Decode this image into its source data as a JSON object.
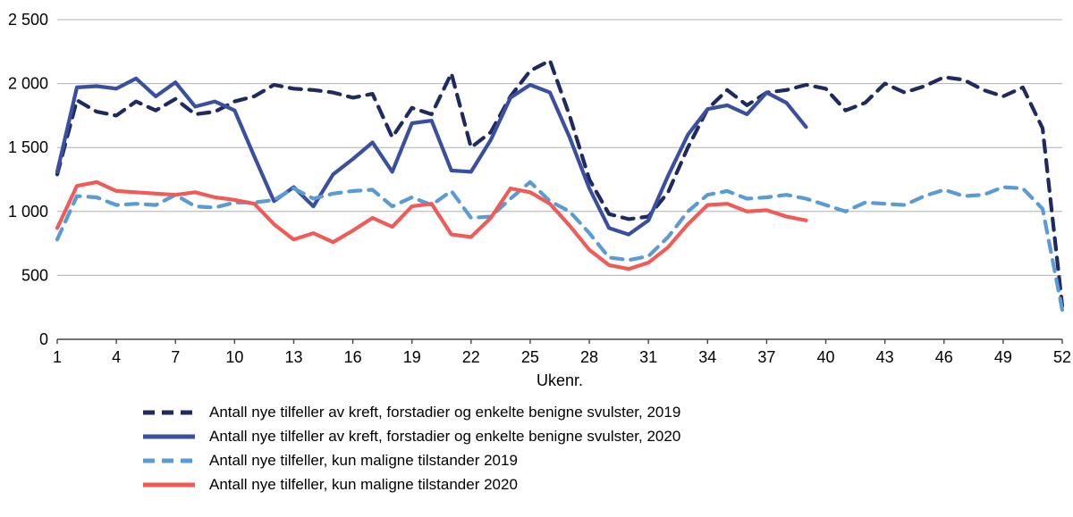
{
  "chart_data": {
    "type": "line",
    "xlabel": "Ukenr.",
    "ylabel": "",
    "ylim": [
      0,
      2500
    ],
    "xlim": [
      1,
      52
    ],
    "grid": true,
    "legend_position": "bottom-left",
    "y_ticks": [
      {
        "value": 0,
        "label": "0"
      },
      {
        "value": 500,
        "label": "500"
      },
      {
        "value": 1000,
        "label": "1 000"
      },
      {
        "value": 1500,
        "label": "1 500"
      },
      {
        "value": 2000,
        "label": "2 000"
      },
      {
        "value": 2500,
        "label": "2 500"
      }
    ],
    "x_ticks": [
      {
        "value": 1,
        "label": "1"
      },
      {
        "value": 4,
        "label": "4"
      },
      {
        "value": 7,
        "label": "7"
      },
      {
        "value": 10,
        "label": "10"
      },
      {
        "value": 13,
        "label": "13"
      },
      {
        "value": 16,
        "label": "16"
      },
      {
        "value": 19,
        "label": "19"
      },
      {
        "value": 22,
        "label": "22"
      },
      {
        "value": 25,
        "label": "25"
      },
      {
        "value": 28,
        "label": "28"
      },
      {
        "value": 31,
        "label": "31"
      },
      {
        "value": 34,
        "label": "34"
      },
      {
        "value": 37,
        "label": "37"
      },
      {
        "value": 40,
        "label": "40"
      },
      {
        "value": 43,
        "label": "43"
      },
      {
        "value": 46,
        "label": "46"
      },
      {
        "value": 49,
        "label": "49"
      },
      {
        "value": 52,
        "label": "52"
      }
    ],
    "series": [
      {
        "name": "Antall nye tilfeller av kreft, forstadier og enkelte benigne svulster, 2019",
        "color": "#1F2A5E",
        "dashed": true,
        "start_week": 1,
        "values": [
          1290,
          1870,
          1780,
          1750,
          1860,
          1790,
          1880,
          1760,
          1780,
          1860,
          1900,
          1990,
          1960,
          1950,
          1930,
          1890,
          1920,
          1580,
          1810,
          1760,
          2080,
          1500,
          1620,
          1900,
          2100,
          2180,
          1750,
          1250,
          980,
          940,
          960,
          1150,
          1500,
          1800,
          1950,
          1830,
          1930,
          1950,
          1990,
          1960,
          1790,
          1850,
          2000,
          1930,
          1980,
          2050,
          2030,
          1950,
          1900,
          1970,
          1650,
          260
        ]
      },
      {
        "name": "Antall nye tilfeller av kreft, forstadier og enkelte benigne svulster, 2020",
        "color": "#3A4FA0",
        "dashed": false,
        "start_week": 1,
        "values": [
          1310,
          1970,
          1980,
          1960,
          2040,
          1900,
          2010,
          1820,
          1860,
          1790,
          1430,
          1080,
          1190,
          1040,
          1290,
          1410,
          1540,
          1310,
          1690,
          1710,
          1320,
          1310,
          1560,
          1890,
          1990,
          1930,
          1580,
          1180,
          870,
          820,
          930,
          1280,
          1600,
          1800,
          1830,
          1760,
          1930,
          1850,
          1660
        ]
      },
      {
        "name": "Antall nye tilfeller, kun maligne tilstander 2019",
        "color": "#5B9BD5",
        "dashed": true,
        "start_week": 1,
        "values": [
          780,
          1120,
          1110,
          1050,
          1060,
          1050,
          1130,
          1040,
          1030,
          1070,
          1070,
          1090,
          1180,
          1100,
          1140,
          1160,
          1170,
          1040,
          1110,
          1050,
          1160,
          950,
          960,
          1100,
          1230,
          1080,
          1000,
          830,
          640,
          620,
          650,
          800,
          1000,
          1130,
          1160,
          1100,
          1110,
          1130,
          1100,
          1050,
          1000,
          1070,
          1060,
          1050,
          1120,
          1170,
          1120,
          1130,
          1190,
          1180,
          1020,
          230
        ]
      },
      {
        "name": "Antall nye tilfeller, kun maligne tilstander 2020",
        "color": "#F05B57",
        "dashed": false,
        "start_week": 1,
        "values": [
          870,
          1200,
          1230,
          1160,
          1150,
          1140,
          1130,
          1150,
          1110,
          1090,
          1060,
          900,
          780,
          830,
          760,
          850,
          950,
          880,
          1040,
          1060,
          820,
          800,
          950,
          1180,
          1150,
          1060,
          890,
          700,
          580,
          550,
          600,
          720,
          900,
          1050,
          1060,
          1000,
          1010,
          960,
          930
        ]
      }
    ]
  }
}
